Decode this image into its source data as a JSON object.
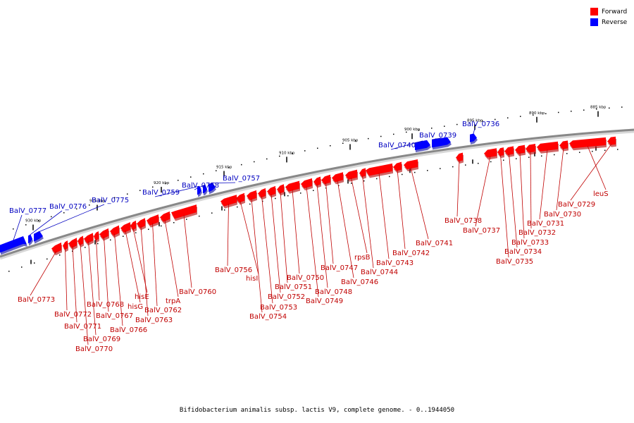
{
  "caption": "Bifidobacterium animalis subsp. lactis V9, complete genome. - 0..1944050",
  "legend": [
    {
      "label": "Forward",
      "color": "#ff0000"
    },
    {
      "label": "Reverse",
      "color": "#0000ff"
    }
  ],
  "colors": {
    "forward": "#ff0000",
    "forward_dark": "#b00000",
    "reverse": "#0000ff",
    "reverse_dark": "#0000a0",
    "forward_label": "#c00000",
    "reverse_label": "#0000c0",
    "backbone": "#888888"
  },
  "ticks": [
    {
      "kbp": 885,
      "label": "885 kbp"
    },
    {
      "kbp": 890,
      "label": "890 kbp"
    },
    {
      "kbp": 895,
      "label": "895 kbp"
    },
    {
      "kbp": 900,
      "label": "900 kbp"
    },
    {
      "kbp": 905,
      "label": "905 kbp"
    },
    {
      "kbp": 910,
      "label": "910 kbp"
    },
    {
      "kbp": 915,
      "label": "915 kbp"
    },
    {
      "kbp": 920,
      "label": "920 kbp"
    },
    {
      "kbp": 925,
      "label": "925 kbp"
    },
    {
      "kbp": 930,
      "label": "930 kbp"
    }
  ],
  "genes": [
    {
      "name": "BalV_0729",
      "strand": "forward"
    },
    {
      "name": "leuS",
      "strand": "forward"
    },
    {
      "name": "BalV_0730",
      "strand": "forward"
    },
    {
      "name": "BalV_0731",
      "strand": "forward"
    },
    {
      "name": "BalV_0732",
      "strand": "forward"
    },
    {
      "name": "BalV_0733",
      "strand": "forward"
    },
    {
      "name": "BalV_0734",
      "strand": "forward"
    },
    {
      "name": "BalV_0735",
      "strand": "forward"
    },
    {
      "name": "BalV_0736",
      "strand": "reverse"
    },
    {
      "name": "BalV_0737",
      "strand": "forward"
    },
    {
      "name": "BalV_0738",
      "strand": "forward"
    },
    {
      "name": "BalV_0739",
      "strand": "reverse"
    },
    {
      "name": "BalV_0740",
      "strand": "reverse"
    },
    {
      "name": "BalV_0741",
      "strand": "forward"
    },
    {
      "name": "BalV_0742",
      "strand": "forward"
    },
    {
      "name": "BalV_0743",
      "strand": "forward"
    },
    {
      "name": "BalV_0744",
      "strand": "forward"
    },
    {
      "name": "rpsB",
      "strand": "forward"
    },
    {
      "name": "BalV_0746",
      "strand": "forward"
    },
    {
      "name": "BalV_0747",
      "strand": "forward"
    },
    {
      "name": "BalV_0748",
      "strand": "forward"
    },
    {
      "name": "BalV_0749",
      "strand": "forward"
    },
    {
      "name": "BalV_0750",
      "strand": "forward"
    },
    {
      "name": "BalV_0751",
      "strand": "forward"
    },
    {
      "name": "BalV_0752",
      "strand": "forward"
    },
    {
      "name": "BalV_0753",
      "strand": "forward"
    },
    {
      "name": "BalV_0754",
      "strand": "forward"
    },
    {
      "name": "hisI",
      "strand": "forward"
    },
    {
      "name": "BalV_0756",
      "strand": "forward"
    },
    {
      "name": "BalV_0757",
      "strand": "reverse"
    },
    {
      "name": "BalV_0758",
      "strand": "reverse"
    },
    {
      "name": "BalV_0759",
      "strand": "reverse"
    },
    {
      "name": "BalV_0760",
      "strand": "forward"
    },
    {
      "name": "trpA",
      "strand": "forward"
    },
    {
      "name": "BalV_0762",
      "strand": "forward"
    },
    {
      "name": "BalV_0763",
      "strand": "forward"
    },
    {
      "name": "hisE",
      "strand": "forward"
    },
    {
      "name": "hisG",
      "strand": "forward"
    },
    {
      "name": "BalV_0766",
      "strand": "forward"
    },
    {
      "name": "BalV_0767",
      "strand": "forward"
    },
    {
      "name": "BalV_0768",
      "strand": "forward"
    },
    {
      "name": "BalV_0769",
      "strand": "forward"
    },
    {
      "name": "BalV_0770",
      "strand": "forward"
    },
    {
      "name": "BalV_0771",
      "strand": "forward"
    },
    {
      "name": "BalV_0772",
      "strand": "forward"
    },
    {
      "name": "BalV_0773",
      "strand": "forward"
    },
    {
      "name": "BalV_0775",
      "strand": "reverse"
    },
    {
      "name": "BalV_0776",
      "strand": "reverse"
    },
    {
      "name": "BalV_0777",
      "strand": "reverse"
    }
  ]
}
